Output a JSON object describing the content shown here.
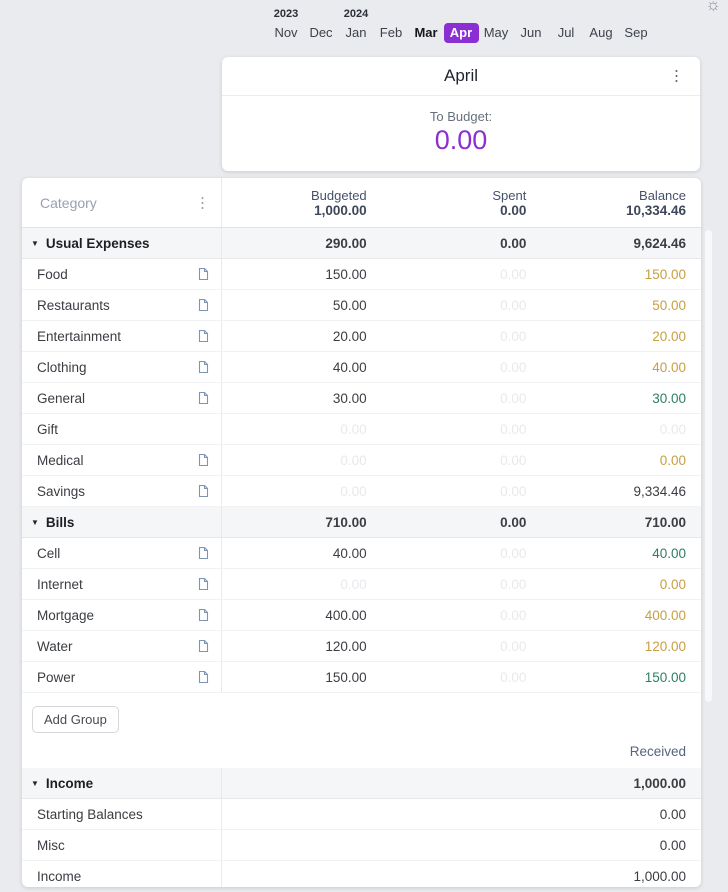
{
  "colors": {
    "accent_purple": "#8b2fd2",
    "amber": "#c6a043",
    "green": "#2f7e64",
    "page_background": "#e9ebee",
    "group_row_background": "#f5f6f8"
  },
  "theme_toggle": {
    "icon": "sun-icon"
  },
  "month_nav": {
    "months": [
      {
        "label": "Nov",
        "year": "2023"
      },
      {
        "label": "Dec"
      },
      {
        "label": "Jan",
        "year": "2024"
      },
      {
        "label": "Feb"
      },
      {
        "label": "Mar",
        "style": "bold"
      },
      {
        "label": "Apr",
        "style": "selected"
      },
      {
        "label": "May"
      },
      {
        "label": "Jun"
      },
      {
        "label": "Jul"
      },
      {
        "label": "Aug"
      },
      {
        "label": "Sep"
      }
    ]
  },
  "summary_card": {
    "title": "April",
    "menu_icon": "kebab-menu",
    "to_budget_label": "To Budget:",
    "to_budget_value": "0.00"
  },
  "table": {
    "category_header": "Category",
    "columns": [
      {
        "label": "Budgeted",
        "total": "1,000.00"
      },
      {
        "label": "Spent",
        "total": "0.00"
      },
      {
        "label": "Balance",
        "total": "10,334.46"
      }
    ],
    "expense_groups": [
      {
        "name": "Usual Expenses",
        "budgeted": "290.00",
        "spent": "0.00",
        "balance": "9,624.46",
        "rows": [
          {
            "name": "Food",
            "note": true,
            "budgeted": "150.00",
            "budgeted_faded": false,
            "spent": "0.00",
            "balance": "150.00",
            "balance_color": "orange"
          },
          {
            "name": "Restaurants",
            "note": true,
            "budgeted": "50.00",
            "budgeted_faded": false,
            "spent": "0.00",
            "balance": "50.00",
            "balance_color": "orange"
          },
          {
            "name": "Entertainment",
            "note": true,
            "budgeted": "20.00",
            "budgeted_faded": false,
            "spent": "0.00",
            "balance": "20.00",
            "balance_color": "orange"
          },
          {
            "name": "Clothing",
            "note": true,
            "budgeted": "40.00",
            "budgeted_faded": false,
            "spent": "0.00",
            "balance": "40.00",
            "balance_color": "orange"
          },
          {
            "name": "General",
            "note": true,
            "budgeted": "30.00",
            "budgeted_faded": false,
            "spent": "0.00",
            "balance": "30.00",
            "balance_color": "green"
          },
          {
            "name": "Gift",
            "note": false,
            "budgeted": "0.00",
            "budgeted_faded": true,
            "spent": "0.00",
            "balance": "0.00",
            "balance_color": "faded"
          },
          {
            "name": "Medical",
            "note": true,
            "budgeted": "0.00",
            "budgeted_faded": true,
            "spent": "0.00",
            "balance": "0.00",
            "balance_color": "orange"
          },
          {
            "name": "Savings",
            "note": true,
            "budgeted": "0.00",
            "budgeted_faded": true,
            "spent": "0.00",
            "balance": "9,334.46",
            "balance_color": "dark"
          }
        ]
      },
      {
        "name": "Bills",
        "budgeted": "710.00",
        "spent": "0.00",
        "balance": "710.00",
        "rows": [
          {
            "name": "Cell",
            "note": true,
            "budgeted": "40.00",
            "budgeted_faded": false,
            "spent": "0.00",
            "balance": "40.00",
            "balance_color": "green"
          },
          {
            "name": "Internet",
            "note": true,
            "budgeted": "0.00",
            "budgeted_faded": true,
            "spent": "0.00",
            "balance": "0.00",
            "balance_color": "orange"
          },
          {
            "name": "Mortgage",
            "note": true,
            "budgeted": "400.00",
            "budgeted_faded": false,
            "spent": "0.00",
            "balance": "400.00",
            "balance_color": "orange"
          },
          {
            "name": "Water",
            "note": true,
            "budgeted": "120.00",
            "budgeted_faded": false,
            "spent": "0.00",
            "balance": "120.00",
            "balance_color": "orange"
          },
          {
            "name": "Power",
            "note": true,
            "budgeted": "150.00",
            "budgeted_faded": false,
            "spent": "0.00",
            "balance": "150.00",
            "balance_color": "green"
          }
        ]
      }
    ],
    "add_group_label": "Add Group",
    "received_label": "Received",
    "income_group": {
      "name": "Income",
      "received": "1,000.00",
      "rows": [
        {
          "name": "Starting Balances",
          "received": "0.00"
        },
        {
          "name": "Misc",
          "received": "0.00"
        },
        {
          "name": "Income",
          "received": "1,000.00"
        }
      ]
    }
  }
}
